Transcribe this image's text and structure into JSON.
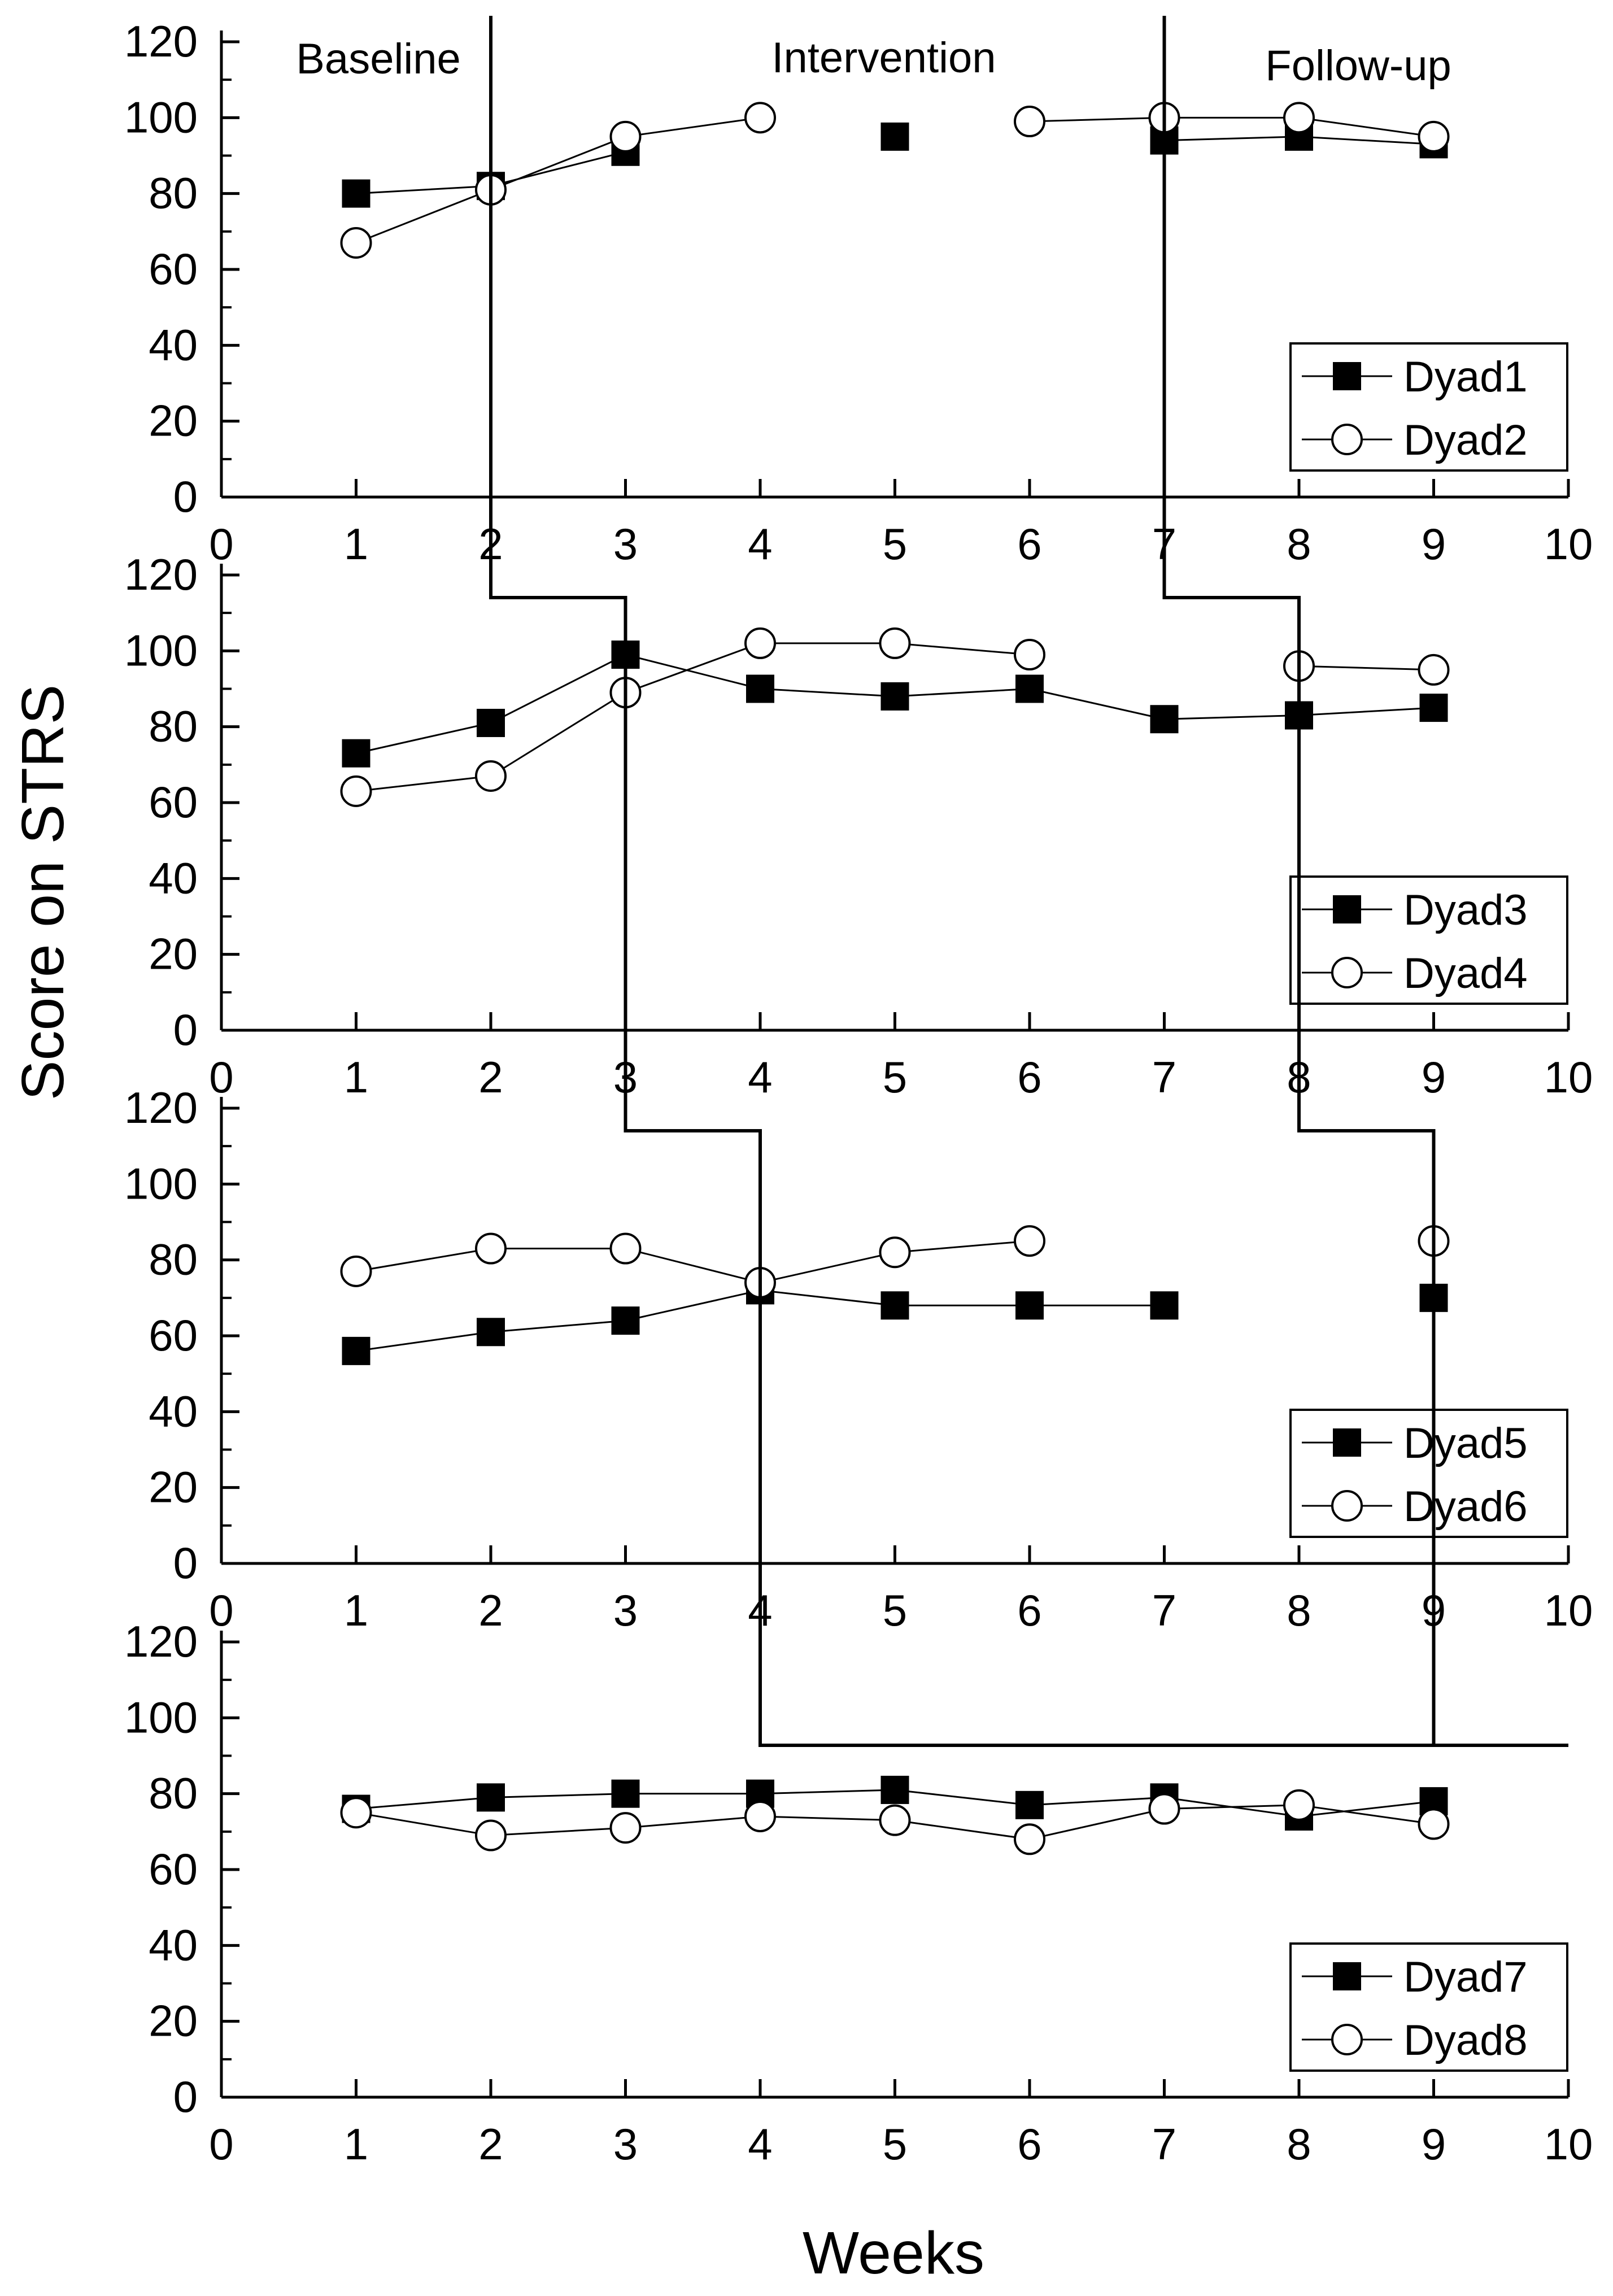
{
  "chart_data": {
    "type": "line",
    "ylabel": "Score on STRS",
    "xlabel": "Weeks",
    "phase_labels": [
      "Baseline",
      "Intervention",
      "Follow-up"
    ],
    "xlim": [
      0,
      10
    ],
    "ylim": [
      0,
      120
    ],
    "x_ticks": [
      0,
      1,
      2,
      3,
      4,
      5,
      6,
      7,
      8,
      9,
      10
    ],
    "y_ticks": [
      0,
      20,
      40,
      60,
      80,
      100,
      120
    ],
    "phase_change_lines": {
      "baseline_to_intervention": [
        2,
        3,
        4,
        4
      ],
      "intervention_to_followup": [
        7,
        8,
        9,
        9
      ]
    },
    "panels": [
      {
        "series": [
          {
            "name": "Dyad1",
            "marker": "square-filled",
            "points": [
              [
                1,
                80
              ],
              [
                2,
                82
              ],
              [
                3,
                91
              ],
              [
                5,
                95
              ],
              [
                7,
                94
              ],
              [
                8,
                95
              ],
              [
                9,
                93
              ]
            ],
            "connected": [
              [
                0,
                1
              ],
              [
                1,
                2
              ],
              [
                4,
                5
              ],
              [
                5,
                6
              ]
            ]
          },
          {
            "name": "Dyad2",
            "marker": "circle-open",
            "points": [
              [
                1,
                67
              ],
              [
                2,
                81
              ],
              [
                3,
                95
              ],
              [
                4,
                100
              ],
              [
                6,
                99
              ],
              [
                7,
                100
              ],
              [
                8,
                100
              ],
              [
                9,
                95
              ]
            ],
            "connected": [
              [
                0,
                1
              ],
              [
                1,
                2
              ],
              [
                2,
                3
              ],
              [
                4,
                5
              ],
              [
                5,
                6
              ],
              [
                6,
                7
              ]
            ]
          }
        ]
      },
      {
        "series": [
          {
            "name": "Dyad3",
            "marker": "square-filled",
            "points": [
              [
                1,
                73
              ],
              [
                2,
                81
              ],
              [
                3,
                99
              ],
              [
                4,
                90
              ],
              [
                5,
                88
              ],
              [
                6,
                90
              ],
              [
                7,
                82
              ],
              [
                8,
                83
              ],
              [
                9,
                85
              ]
            ],
            "connected": [
              [
                0,
                1
              ],
              [
                1,
                2
              ],
              [
                2,
                3
              ],
              [
                3,
                4
              ],
              [
                4,
                5
              ],
              [
                5,
                6
              ],
              [
                6,
                7
              ],
              [
                7,
                8
              ]
            ]
          },
          {
            "name": "Dyad4",
            "marker": "circle-open",
            "points": [
              [
                1,
                63
              ],
              [
                2,
                67
              ],
              [
                3,
                89
              ],
              [
                4,
                102
              ],
              [
                5,
                102
              ],
              [
                6,
                99
              ],
              [
                8,
                96
              ],
              [
                9,
                95
              ]
            ],
            "connected": [
              [
                0,
                1
              ],
              [
                1,
                2
              ],
              [
                2,
                3
              ],
              [
                3,
                4
              ],
              [
                4,
                5
              ],
              [
                6,
                7
              ]
            ]
          }
        ]
      },
      {
        "series": [
          {
            "name": "Dyad5",
            "marker": "square-filled",
            "points": [
              [
                1,
                56
              ],
              [
                2,
                61
              ],
              [
                3,
                64
              ],
              [
                4,
                72
              ],
              [
                5,
                68
              ],
              [
                6,
                68
              ],
              [
                7,
                68
              ],
              [
                9,
                70
              ]
            ],
            "connected": [
              [
                0,
                1
              ],
              [
                1,
                2
              ],
              [
                2,
                3
              ],
              [
                3,
                4
              ],
              [
                4,
                5
              ],
              [
                5,
                6
              ]
            ]
          },
          {
            "name": "Dyad6",
            "marker": "circle-open",
            "points": [
              [
                1,
                77
              ],
              [
                2,
                83
              ],
              [
                3,
                83
              ],
              [
                4,
                74
              ],
              [
                5,
                82
              ],
              [
                6,
                85
              ],
              [
                9,
                85
              ]
            ],
            "connected": [
              [
                0,
                1
              ],
              [
                1,
                2
              ],
              [
                2,
                3
              ],
              [
                3,
                4
              ],
              [
                4,
                5
              ]
            ]
          }
        ]
      },
      {
        "series": [
          {
            "name": "Dyad7",
            "marker": "square-filled",
            "points": [
              [
                1,
                76
              ],
              [
                2,
                79
              ],
              [
                3,
                80
              ],
              [
                4,
                80
              ],
              [
                5,
                81
              ],
              [
                6,
                77
              ],
              [
                7,
                79
              ],
              [
                8,
                74
              ],
              [
                9,
                78
              ]
            ],
            "connected": [
              [
                0,
                1
              ],
              [
                1,
                2
              ],
              [
                2,
                3
              ],
              [
                3,
                4
              ],
              [
                4,
                5
              ],
              [
                5,
                6
              ],
              [
                6,
                7
              ],
              [
                7,
                8
              ]
            ]
          },
          {
            "name": "Dyad8",
            "marker": "circle-open",
            "points": [
              [
                1,
                75
              ],
              [
                2,
                69
              ],
              [
                3,
                71
              ],
              [
                4,
                74
              ],
              [
                5,
                73
              ],
              [
                6,
                68
              ],
              [
                7,
                76
              ],
              [
                8,
                77
              ],
              [
                9,
                72
              ]
            ],
            "connected": [
              [
                0,
                1
              ],
              [
                1,
                2
              ],
              [
                2,
                3
              ],
              [
                3,
                4
              ],
              [
                4,
                5
              ],
              [
                5,
                6
              ],
              [
                6,
                7
              ],
              [
                7,
                8
              ]
            ]
          }
        ]
      }
    ]
  }
}
